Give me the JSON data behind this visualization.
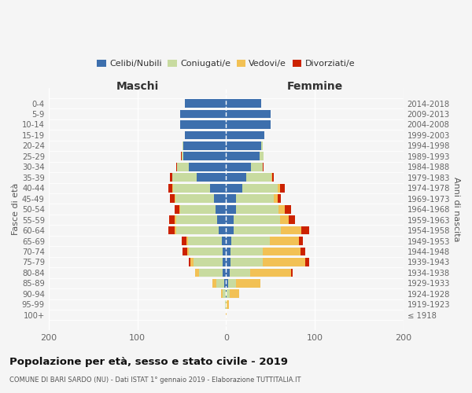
{
  "age_groups": [
    "0-4",
    "5-9",
    "10-14",
    "15-19",
    "20-24",
    "25-29",
    "30-34",
    "35-39",
    "40-44",
    "45-49",
    "50-54",
    "55-59",
    "60-64",
    "65-69",
    "70-74",
    "75-79",
    "80-84",
    "85-89",
    "90-94",
    "95-99",
    "100+"
  ],
  "birth_years": [
    "2014-2018",
    "2009-2013",
    "2004-2008",
    "1999-2003",
    "1994-1998",
    "1989-1993",
    "1984-1988",
    "1979-1983",
    "1974-1978",
    "1969-1973",
    "1964-1968",
    "1959-1963",
    "1954-1958",
    "1949-1953",
    "1944-1948",
    "1939-1943",
    "1934-1938",
    "1929-1933",
    "1924-1928",
    "1919-1923",
    "≤ 1918"
  ],
  "males": {
    "celibi": [
      46,
      52,
      52,
      46,
      48,
      48,
      42,
      33,
      18,
      14,
      12,
      10,
      8,
      5,
      4,
      4,
      4,
      2,
      0,
      0,
      0
    ],
    "coniugati": [
      0,
      0,
      0,
      0,
      1,
      2,
      13,
      28,
      42,
      43,
      40,
      46,
      48,
      38,
      38,
      33,
      26,
      9,
      4,
      1,
      0
    ],
    "vedovi": [
      0,
      0,
      0,
      0,
      0,
      0,
      0,
      0,
      1,
      1,
      1,
      2,
      2,
      2,
      2,
      3,
      5,
      4,
      2,
      0,
      0
    ],
    "divorziati": [
      0,
      0,
      0,
      0,
      0,
      1,
      1,
      2,
      4,
      5,
      5,
      6,
      7,
      5,
      5,
      2,
      0,
      0,
      0,
      0,
      0
    ]
  },
  "females": {
    "nubili": [
      40,
      50,
      50,
      43,
      40,
      38,
      28,
      23,
      18,
      11,
      11,
      9,
      9,
      6,
      5,
      5,
      4,
      2,
      1,
      0,
      0
    ],
    "coniugate": [
      0,
      0,
      0,
      0,
      1,
      4,
      13,
      28,
      40,
      43,
      48,
      52,
      53,
      43,
      36,
      36,
      23,
      9,
      3,
      1,
      0
    ],
    "vedove": [
      0,
      0,
      0,
      0,
      0,
      0,
      0,
      1,
      3,
      4,
      7,
      10,
      23,
      33,
      43,
      48,
      46,
      28,
      11,
      2,
      1
    ],
    "divorziate": [
      0,
      0,
      0,
      0,
      0,
      0,
      1,
      2,
      5,
      4,
      7,
      7,
      9,
      5,
      5,
      5,
      2,
      0,
      0,
      0,
      0
    ]
  },
  "colors": {
    "celibi": "#3d6fad",
    "coniugati": "#c8dba0",
    "vedovi": "#f2c155",
    "divorziati": "#cc2200"
  },
  "title": "Popolazione per età, sesso e stato civile - 2019",
  "subtitle": "COMUNE DI BARI SARDO (NU) - Dati ISTAT 1° gennaio 2019 - Elaborazione TUTTITALIA.IT",
  "xlabel_left": "Maschi",
  "xlabel_right": "Femmine",
  "ylabel_left": "Fasce di età",
  "ylabel_right": "Anni di nascita",
  "xlim": [
    -200,
    200
  ],
  "background_color": "#f5f5f5"
}
